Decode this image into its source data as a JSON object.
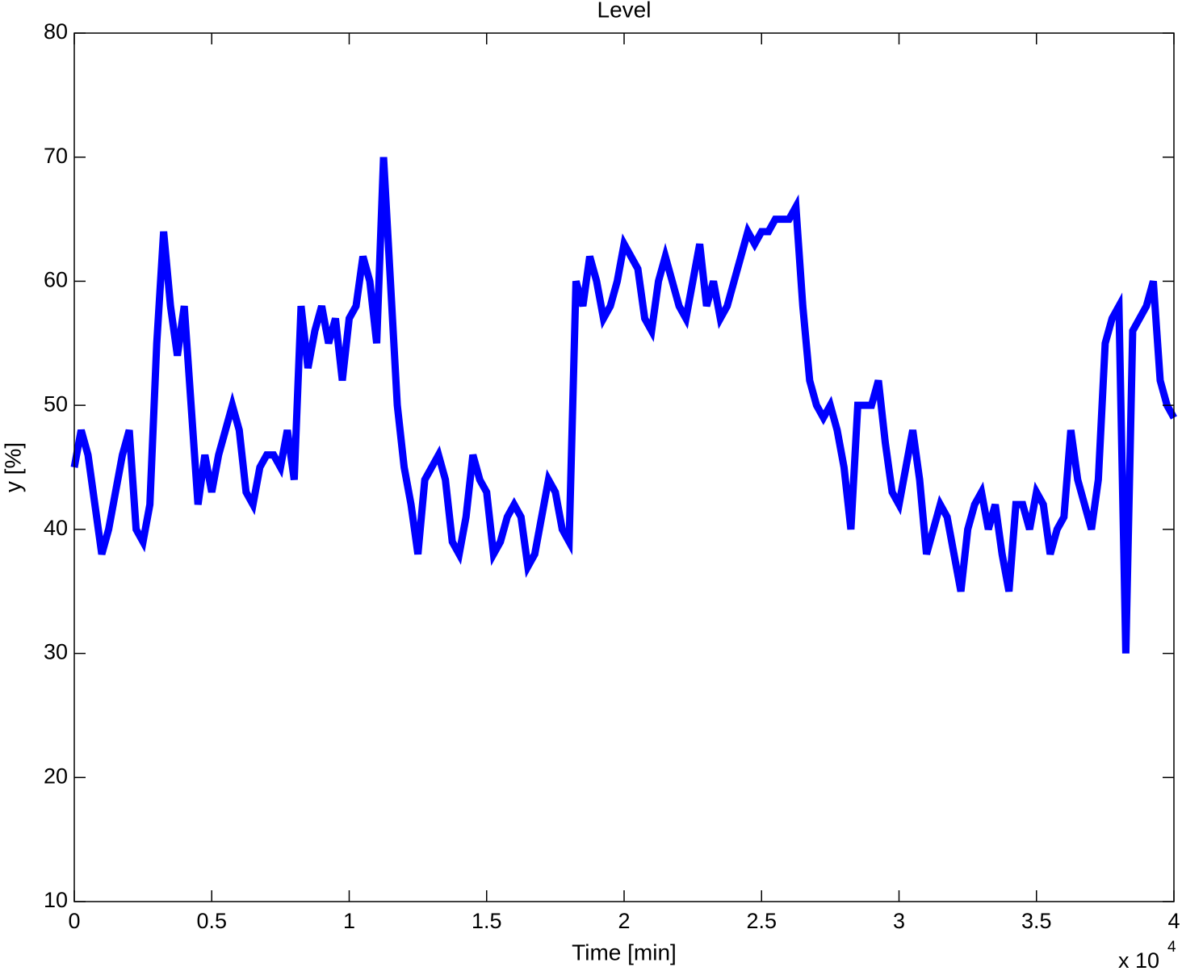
{
  "chart_data": {
    "type": "line",
    "title": "Level",
    "x_label": "Time [min]",
    "y_label": "y [%]",
    "x_multiplier": {
      "base": "x 10",
      "exponent": "4"
    },
    "xlim": [
      0,
      4
    ],
    "xticks": [
      0,
      0.5,
      1,
      1.5,
      2,
      2.5,
      3,
      3.5,
      4
    ],
    "ylim": [
      10,
      80
    ],
    "yticks": [
      10,
      20,
      30,
      40,
      50,
      60,
      70,
      80
    ],
    "grid": false,
    "x": [
      0,
      0.025,
      0.05,
      0.075,
      0.1,
      0.125,
      0.15,
      0.175,
      0.2,
      0.225,
      0.25,
      0.275,
      0.3,
      0.325,
      0.35,
      0.375,
      0.4,
      0.425,
      0.45,
      0.475,
      0.5,
      0.525,
      0.55,
      0.575,
      0.6,
      0.625,
      0.65,
      0.675,
      0.7,
      0.725,
      0.75,
      0.775,
      0.8,
      0.825,
      0.85,
      0.875,
      0.9,
      0.925,
      0.95,
      0.975,
      1,
      1.025,
      1.05,
      1.075,
      1.1,
      1.125,
      1.15,
      1.175,
      1.2,
      1.225,
      1.25,
      1.275,
      1.3,
      1.325,
      1.35,
      1.375,
      1.4,
      1.425,
      1.45,
      1.475,
      1.5,
      1.525,
      1.55,
      1.575,
      1.6,
      1.625,
      1.65,
      1.675,
      1.7,
      1.725,
      1.75,
      1.775,
      1.8,
      1.825,
      1.85,
      1.875,
      1.9,
      1.925,
      1.95,
      1.975,
      2,
      2.025,
      2.05,
      2.075,
      2.1,
      2.125,
      2.15,
      2.175,
      2.2,
      2.225,
      2.25,
      2.275,
      2.3,
      2.325,
      2.35,
      2.375,
      2.4,
      2.425,
      2.45,
      2.475,
      2.5,
      2.525,
      2.55,
      2.575,
      2.6,
      2.625,
      2.65,
      2.675,
      2.7,
      2.725,
      2.75,
      2.775,
      2.8,
      2.825,
      2.85,
      2.875,
      2.9,
      2.925,
      2.95,
      2.975,
      3,
      3.025,
      3.05,
      3.075,
      3.1,
      3.125,
      3.15,
      3.175,
      3.2,
      3.225,
      3.25,
      3.275,
      3.3,
      3.325,
      3.35,
      3.375,
      3.4,
      3.425,
      3.45,
      3.475,
      3.5,
      3.525,
      3.55,
      3.575,
      3.6,
      3.625,
      3.65,
      3.675,
      3.7,
      3.725,
      3.75,
      3.775,
      3.8,
      3.825,
      3.85,
      3.875,
      3.9,
      3.925,
      3.95,
      3.975,
      4
    ],
    "series": [
      {
        "name": "y",
        "color": "#0000ff",
        "values": [
          45,
          48,
          46,
          42,
          38,
          40,
          43,
          46,
          48,
          40,
          39,
          42,
          55,
          64,
          58,
          54,
          58,
          50,
          42,
          46,
          43,
          46,
          48,
          50,
          48,
          43,
          42,
          45,
          46,
          46,
          45,
          48,
          44,
          58,
          53,
          56,
          58,
          55,
          57,
          52,
          57,
          58,
          62,
          60,
          55,
          70,
          60,
          50,
          45,
          42,
          38,
          44,
          45,
          46,
          44,
          39,
          38,
          41,
          46,
          44,
          43,
          38,
          39,
          41,
          42,
          41,
          37,
          38,
          41,
          44,
          43,
          40,
          39,
          60,
          58,
          62,
          60,
          57,
          58,
          60,
          63,
          62,
          61,
          57,
          56,
          60,
          62,
          60,
          58,
          57,
          60,
          63,
          58,
          60,
          57,
          58,
          60,
          62,
          64,
          63,
          64,
          64,
          65,
          65,
          65,
          66,
          58,
          52,
          50,
          49,
          50,
          48,
          45,
          40,
          50,
          50,
          50,
          52,
          47,
          43,
          42,
          45,
          48,
          44,
          38,
          40,
          42,
          41,
          38,
          35,
          40,
          42,
          43,
          40,
          42,
          38,
          35,
          42,
          42,
          40,
          43,
          42,
          38,
          40,
          41,
          48,
          44,
          42,
          40,
          44,
          55,
          57,
          58,
          30,
          56,
          57,
          58,
          60,
          52,
          50,
          49
        ]
      }
    ]
  }
}
